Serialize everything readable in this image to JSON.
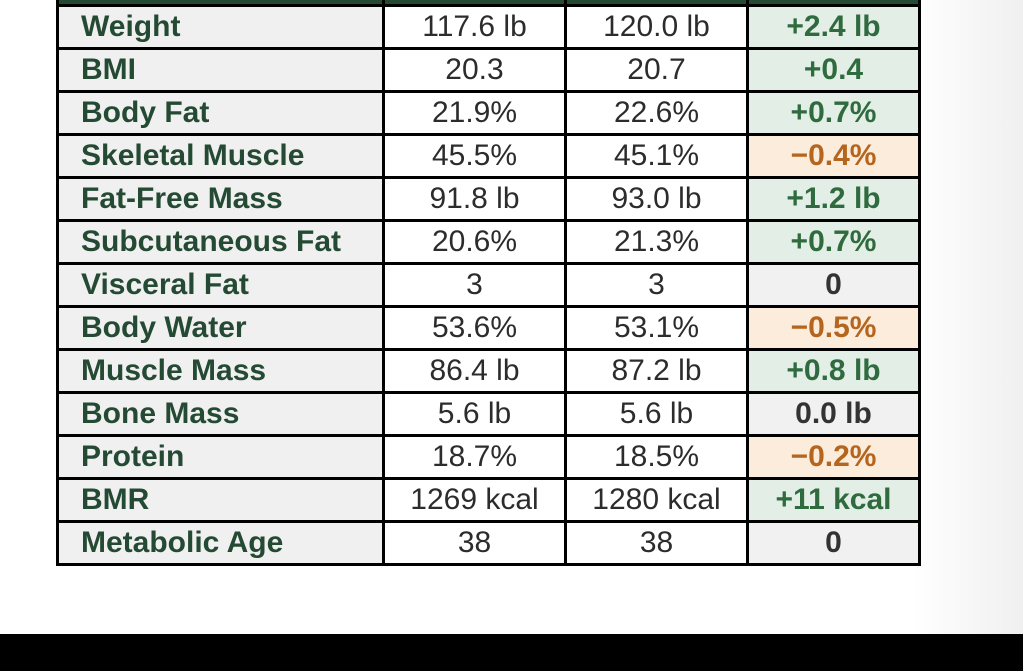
{
  "colors": {
    "header": "#254a34",
    "label_text": "#254a34",
    "increase_bg": "#e3efe6",
    "increase_text": "#2f6b3f",
    "decrease_bg": "#fbecdc",
    "decrease_text": "#b5651d",
    "neutral_bg": "#f1f1f1"
  },
  "table": {
    "rows": [
      {
        "metric": "Weight",
        "before": "117.6 lb",
        "after": "120.0 lb",
        "change": "+2.4 lb",
        "trend": "up"
      },
      {
        "metric": "BMI",
        "before": "20.3",
        "after": "20.7",
        "change": "+0.4",
        "trend": "up"
      },
      {
        "metric": "Body Fat",
        "before": "21.9%",
        "after": "22.6%",
        "change": "+0.7%",
        "trend": "up"
      },
      {
        "metric": "Skeletal Muscle",
        "before": "45.5%",
        "after": "45.1%",
        "change": "−0.4%",
        "trend": "down"
      },
      {
        "metric": "Fat-Free Mass",
        "before": "91.8 lb",
        "after": "93.0 lb",
        "change": "+1.2 lb",
        "trend": "up"
      },
      {
        "metric": "Subcutaneous Fat",
        "before": "20.6%",
        "after": "21.3%",
        "change": "+0.7%",
        "trend": "up"
      },
      {
        "metric": "Visceral Fat",
        "before": "3",
        "after": "3",
        "change": "0",
        "trend": "flat"
      },
      {
        "metric": "Body Water",
        "before": "53.6%",
        "after": "53.1%",
        "change": "−0.5%",
        "trend": "down"
      },
      {
        "metric": "Muscle Mass",
        "before": "86.4 lb",
        "after": "87.2 lb",
        "change": "+0.8 lb",
        "trend": "up"
      },
      {
        "metric": "Bone Mass",
        "before": "5.6 lb",
        "after": "5.6 lb",
        "change": "0.0 lb",
        "trend": "flat"
      },
      {
        "metric": "Protein",
        "before": "18.7%",
        "after": "18.5%",
        "change": "−0.2%",
        "trend": "down"
      },
      {
        "metric": "BMR",
        "before": "1269 kcal",
        "after": "1280 kcal",
        "change": "+11 kcal",
        "trend": "up"
      },
      {
        "metric": "Metabolic Age",
        "before": "38",
        "after": "38",
        "change": "0",
        "trend": "flat"
      }
    ]
  }
}
